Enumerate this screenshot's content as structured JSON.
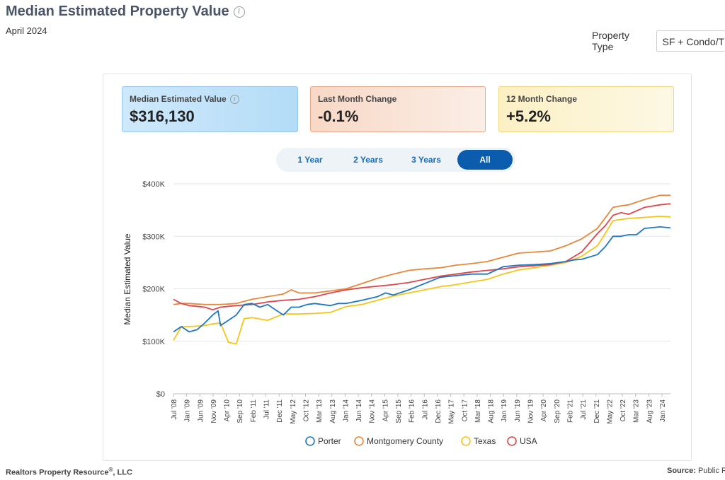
{
  "header": {
    "title": "Median Estimated Property Value",
    "subtitle": "April 2024"
  },
  "property_type": {
    "label": "Property Type",
    "value": "SF + Condo/TH"
  },
  "cards": [
    {
      "label": "Median Estimated Value",
      "value": "$316,130"
    },
    {
      "label": "Last Month Change",
      "value": "-0.1%"
    },
    {
      "label": "12 Month Change",
      "value": "+5.2%"
    }
  ],
  "range_tabs": [
    "1 Year",
    "2 Years",
    "3 Years",
    "All"
  ],
  "active_tab": "All",
  "footer": {
    "left": "Realtors Property Resource",
    "left_sup": "®",
    "left_suffix": ", LLC",
    "right_label": "Source:",
    "right_value": "Public Re"
  },
  "colors": {
    "Porter": "#1f77c4",
    "Montgomery County": "#e8883a",
    "Texas": "#f5c518",
    "USA": "#e0474c"
  },
  "chart_data": {
    "type": "line",
    "title": "",
    "ylabel": "Median Estimated Value",
    "xlabel": "",
    "ylim": [
      0,
      400000
    ],
    "yticks": [
      0,
      100000,
      200000,
      300000,
      400000
    ],
    "ytick_labels": [
      "$0",
      "$100K",
      "$200K",
      "$300K",
      "$400K"
    ],
    "xlim": [
      2008.5,
      2024.33
    ],
    "x_tick_labels": [
      "Jul '08",
      "Jan '09",
      "Jun '09",
      "Nov '09",
      "Apr '10",
      "Sep '10",
      "Feb '11",
      "Jul '11",
      "Dec '11",
      "May '12",
      "Oct '12",
      "Mar '13",
      "Aug '13",
      "Jan '14",
      "Jun '14",
      "Nov '14",
      "Apr '15",
      "Sep '15",
      "Feb '16",
      "Jul '16",
      "Dec '16",
      "May '17",
      "Oct '17",
      "Mar '18",
      "Aug '18",
      "Jan '19",
      "Jun '19",
      "Nov '19",
      "Apr '20",
      "Sep '20",
      "Feb '21",
      "Jul '21",
      "Dec '21",
      "May '22",
      "Oct '22",
      "Mar '23",
      "Aug '23",
      "Jan '24"
    ],
    "legend_position": "bottom",
    "series": [
      {
        "name": "Porter",
        "x": [
          2008.5,
          2008.75,
          2009.0,
          2009.25,
          2009.5,
          2009.75,
          2009.92,
          2010.0,
          2010.25,
          2010.5,
          2010.75,
          2011.0,
          2011.25,
          2011.5,
          2011.75,
          2012.0,
          2012.25,
          2012.5,
          2012.75,
          2013.0,
          2013.25,
          2013.5,
          2013.75,
          2014.0,
          2014.5,
          2015.0,
          2015.25,
          2015.5,
          2016.0,
          2016.5,
          2017.0,
          2017.5,
          2018.0,
          2018.5,
          2018.75,
          2019.0,
          2019.5,
          2020.0,
          2020.5,
          2021.0,
          2021.25,
          2021.5,
          2022.0,
          2022.25,
          2022.5,
          2022.75,
          2023.0,
          2023.25,
          2023.5,
          2024.0,
          2024.33
        ],
        "values": [
          118000,
          128000,
          118000,
          122000,
          135000,
          150000,
          158000,
          130000,
          140000,
          150000,
          170000,
          172000,
          165000,
          170000,
          160000,
          150000,
          165000,
          165000,
          170000,
          172000,
          170000,
          168000,
          172000,
          172000,
          178000,
          185000,
          192000,
          188000,
          198000,
          210000,
          222000,
          225000,
          228000,
          228000,
          235000,
          242000,
          245000,
          246000,
          248000,
          252000,
          255000,
          256000,
          265000,
          280000,
          300000,
          300000,
          303000,
          303000,
          315000,
          318000,
          316000
        ]
      },
      {
        "name": "Montgomery County",
        "x": [
          2008.5,
          2008.75,
          2009.0,
          2009.5,
          2009.75,
          2010.0,
          2010.5,
          2011.0,
          2011.5,
          2012.0,
          2012.25,
          2012.5,
          2013.0,
          2013.5,
          2014.0,
          2014.5,
          2015.0,
          2015.5,
          2016.0,
          2016.5,
          2017.0,
          2017.5,
          2018.0,
          2018.5,
          2019.0,
          2019.5,
          2020.0,
          2020.5,
          2021.0,
          2021.5,
          2022.0,
          2022.25,
          2022.5,
          2022.75,
          2023.0,
          2023.5,
          2024.0,
          2024.33
        ],
        "values": [
          170000,
          172000,
          172000,
          170000,
          170000,
          170000,
          172000,
          180000,
          185000,
          190000,
          198000,
          192000,
          192000,
          196000,
          200000,
          210000,
          220000,
          228000,
          235000,
          238000,
          240000,
          245000,
          248000,
          252000,
          260000,
          268000,
          270000,
          272000,
          282000,
          295000,
          315000,
          335000,
          355000,
          358000,
          360000,
          370000,
          378000,
          378000
        ]
      },
      {
        "name": "Texas",
        "x": [
          2008.5,
          2008.75,
          2009.0,
          2009.5,
          2009.75,
          2010.0,
          2010.25,
          2010.5,
          2010.75,
          2011.0,
          2011.5,
          2012.0,
          2012.5,
          2013.0,
          2013.5,
          2014.0,
          2014.5,
          2015.0,
          2015.5,
          2016.0,
          2016.5,
          2017.0,
          2017.5,
          2018.0,
          2018.5,
          2019.0,
          2019.5,
          2020.0,
          2020.5,
          2021.0,
          2021.5,
          2022.0,
          2022.25,
          2022.5,
          2022.75,
          2023.0,
          2023.5,
          2024.0,
          2024.33
        ],
        "values": [
          102000,
          128000,
          128000,
          130000,
          133000,
          135000,
          98000,
          95000,
          143000,
          145000,
          140000,
          152000,
          152000,
          153000,
          155000,
          166000,
          170000,
          178000,
          186000,
          192000,
          198000,
          204000,
          208000,
          213000,
          218000,
          228000,
          236000,
          240000,
          245000,
          250000,
          262000,
          282000,
          305000,
          330000,
          332000,
          334000,
          336000,
          338000,
          337000
        ]
      },
      {
        "name": "USA",
        "x": [
          2008.5,
          2008.75,
          2009.0,
          2009.5,
          2009.75,
          2010.0,
          2010.5,
          2011.0,
          2011.5,
          2012.0,
          2012.5,
          2013.0,
          2013.5,
          2014.0,
          2014.5,
          2015.0,
          2015.5,
          2016.0,
          2016.5,
          2017.0,
          2017.5,
          2018.0,
          2018.5,
          2019.0,
          2019.5,
          2020.0,
          2020.5,
          2021.0,
          2021.5,
          2022.0,
          2022.25,
          2022.5,
          2022.75,
          2023.0,
          2023.5,
          2024.0,
          2024.33
        ],
        "values": [
          180000,
          172000,
          168000,
          165000,
          160000,
          165000,
          168000,
          170000,
          175000,
          178000,
          180000,
          185000,
          192000,
          198000,
          202000,
          205000,
          208000,
          212000,
          218000,
          224000,
          228000,
          232000,
          235000,
          238000,
          242000,
          244000,
          246000,
          252000,
          270000,
          305000,
          320000,
          340000,
          345000,
          342000,
          355000,
          360000,
          362000
        ]
      }
    ]
  }
}
